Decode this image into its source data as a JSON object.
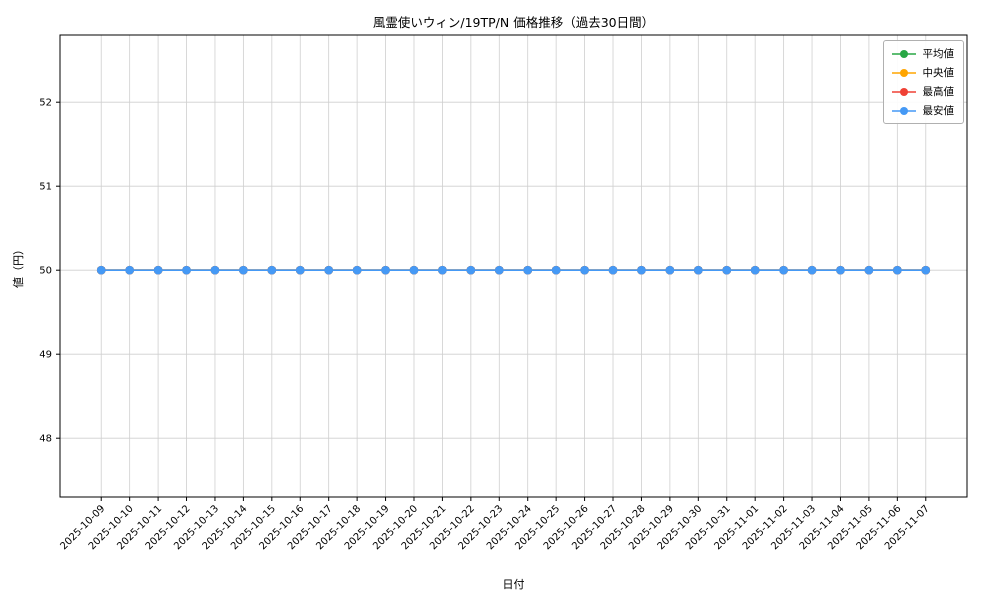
{
  "chart_data": {
    "type": "line",
    "title": "風霊使いウィン/19TP/N 価格推移（過去30日間）",
    "xlabel": "日付",
    "ylabel": "値（円）",
    "x": [
      "2025-10-09",
      "2025-10-10",
      "2025-10-11",
      "2025-10-12",
      "2025-10-13",
      "2025-10-14",
      "2025-10-15",
      "2025-10-16",
      "2025-10-17",
      "2025-10-18",
      "2025-10-19",
      "2025-10-20",
      "2025-10-21",
      "2025-10-22",
      "2025-10-23",
      "2025-10-24",
      "2025-10-25",
      "2025-10-26",
      "2025-10-27",
      "2025-10-28",
      "2025-10-29",
      "2025-10-30",
      "2025-10-31",
      "2025-11-01",
      "2025-11-02",
      "2025-11-03",
      "2025-11-04",
      "2025-11-05",
      "2025-11-06",
      "2025-11-07"
    ],
    "series": [
      {
        "key": "average",
        "name": "平均値",
        "color": "#28a745",
        "values": [
          50,
          50,
          50,
          50,
          50,
          50,
          50,
          50,
          50,
          50,
          50,
          50,
          50,
          50,
          50,
          50,
          50,
          50,
          50,
          50,
          50,
          50,
          50,
          50,
          50,
          50,
          50,
          50,
          50,
          50
        ]
      },
      {
        "key": "median",
        "name": "中央値",
        "color": "#ffa500",
        "values": [
          50,
          50,
          50,
          50,
          50,
          50,
          50,
          50,
          50,
          50,
          50,
          50,
          50,
          50,
          50,
          50,
          50,
          50,
          50,
          50,
          50,
          50,
          50,
          50,
          50,
          50,
          50,
          50,
          50,
          50
        ]
      },
      {
        "key": "highest",
        "name": "最高値",
        "color": "#ef4135",
        "values": [
          50,
          50,
          50,
          50,
          50,
          50,
          50,
          50,
          50,
          50,
          50,
          50,
          50,
          50,
          50,
          50,
          50,
          50,
          50,
          50,
          50,
          50,
          50,
          50,
          50,
          50,
          50,
          50,
          50,
          50
        ]
      },
      {
        "key": "lowest",
        "name": "最安値",
        "color": "#4599f5",
        "values": [
          50,
          50,
          50,
          50,
          50,
          50,
          50,
          50,
          50,
          50,
          50,
          50,
          50,
          50,
          50,
          50,
          50,
          50,
          50,
          50,
          50,
          50,
          50,
          50,
          50,
          50,
          50,
          50,
          50,
          50
        ]
      }
    ],
    "ylim": [
      47.3,
      52.8
    ],
    "yticks": [
      48,
      49,
      50,
      51,
      52
    ],
    "grid": true,
    "legend_position": "upper right"
  }
}
